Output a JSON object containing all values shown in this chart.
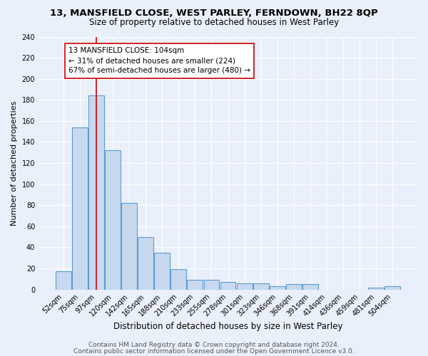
{
  "title1": "13, MANSFIELD CLOSE, WEST PARLEY, FERNDOWN, BH22 8QP",
  "title2": "Size of property relative to detached houses in West Parley",
  "xlabel": "Distribution of detached houses by size in West Parley",
  "ylabel": "Number of detached properties",
  "bar_labels": [
    "52sqm",
    "75sqm",
    "97sqm",
    "120sqm",
    "142sqm",
    "165sqm",
    "188sqm",
    "210sqm",
    "233sqm",
    "255sqm",
    "278sqm",
    "301sqm",
    "323sqm",
    "346sqm",
    "368sqm",
    "391sqm",
    "414sqm",
    "436sqm",
    "459sqm",
    "481sqm",
    "504sqm"
  ],
  "bar_values": [
    17,
    154,
    184,
    132,
    82,
    50,
    35,
    19,
    9,
    9,
    7,
    6,
    6,
    3,
    5,
    5,
    0,
    0,
    0,
    2,
    3
  ],
  "bar_color": "#c8d9ef",
  "bar_edge_color": "#5b9bd5",
  "vline_x": 2,
  "vline_color": "#cc0000",
  "annotation_line1": "13 MANSFIELD CLOSE: 104sqm",
  "annotation_line2": "← 31% of detached houses are smaller (224)",
  "annotation_line3": "67% of semi-detached houses are larger (480) →",
  "annotation_box_color": "#ffffff",
  "annotation_box_edge": "#cc0000",
  "ylim": [
    0,
    240
  ],
  "yticks": [
    0,
    20,
    40,
    60,
    80,
    100,
    120,
    140,
    160,
    180,
    200,
    220,
    240
  ],
  "footer1": "Contains HM Land Registry data © Crown copyright and database right 2024.",
  "footer2": "Contains public sector information licensed under the Open Government Licence v3.0.",
  "bg_color": "#eaf0fb",
  "grid_color": "#ffffff",
  "title1_fontsize": 9.5,
  "title2_fontsize": 8.5,
  "xlabel_fontsize": 8.5,
  "ylabel_fontsize": 8,
  "tick_fontsize": 7,
  "annotation_fontsize": 7.5,
  "footer_fontsize": 6.5
}
